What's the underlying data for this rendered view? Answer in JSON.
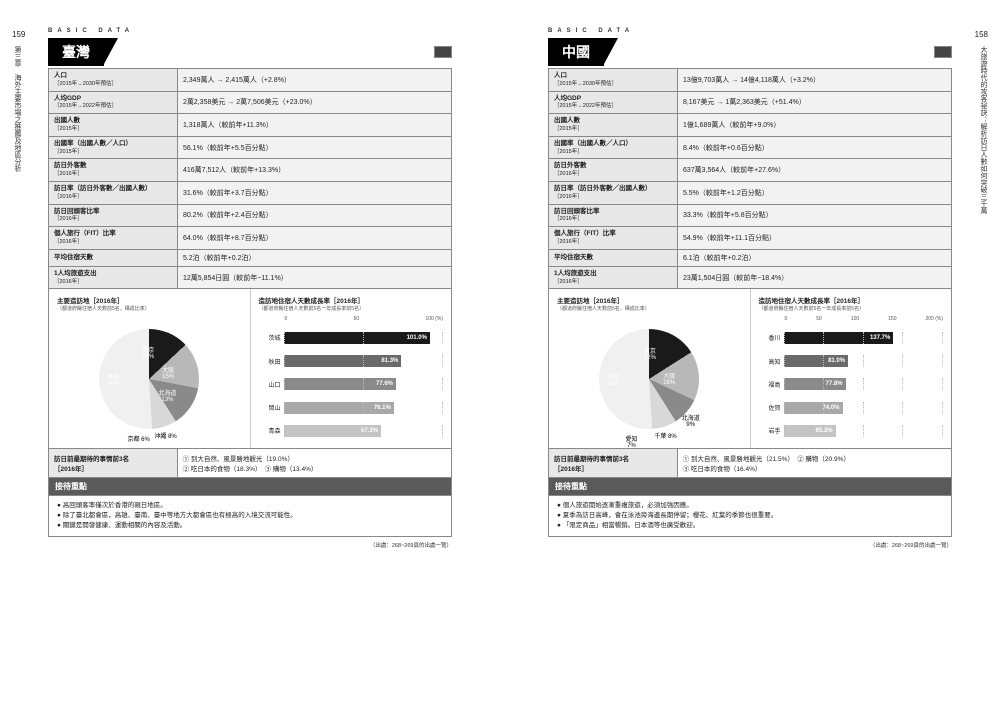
{
  "header": "BASIC DATA",
  "source": "（出處：268~269頁的出處一覽）",
  "left": {
    "pgnum": "159",
    "sidenote": "第三章　海外主要市場之推薦及地區分析",
    "title": "臺灣",
    "rows": [
      {
        "k": "人口",
        "s": "［2015年→2030年預估］",
        "v": "2,349萬人 → 2,415萬人（+2.8%）"
      },
      {
        "k": "人均GDP",
        "s": "［2015年→2022年預估］",
        "v": "2萬2,358美元 → 2萬7,506美元（+23.0%）"
      },
      {
        "k": "出國人數",
        "s": "［2015年］",
        "v": "1,318萬人（較前年+11.3%）"
      },
      {
        "k": "出國率（出國人數／人口）",
        "s": "［2015年］",
        "v": "56.1%（較前年+5.5百分點）"
      },
      {
        "k": "訪日外客數",
        "s": "［2016年］",
        "v": "416萬7,512人（較前年+13.3%）"
      },
      {
        "k": "訪日率（訪日外客數／出國人數）",
        "s": "［2016年］",
        "v": "31.6%（較前年+3.7百分點）"
      },
      {
        "k": "訪日回頭客比率",
        "s": "［2016年］",
        "v": "80.2%（較前年+2.4百分點）"
      },
      {
        "k": "個人旅行（FIT）比率",
        "s": "［2016年］",
        "v": "64.0%（較前年+8.7百分點）"
      },
      {
        "k": "平均住宿天數",
        "s": "",
        "v": "5.2泊（較前年+0.2泊）"
      },
      {
        "k": "1人均旅遊支出",
        "s": "［2016年］",
        "v": "12萬5,854日圓（較前年−11.1%）"
      }
    ],
    "pie": {
      "title": "主要造訪地［2016年］",
      "sub": "（都道府縣住宿人天數前5名，構成比率）",
      "slices": [
        {
          "label": "其他",
          "pct": 40,
          "color": "#4a4a4a",
          "text": "其他\n40%"
        },
        {
          "label": "東京",
          "pct": 18,
          "color": "#1a1a1a",
          "text": "東京\n18%"
        },
        {
          "label": "大阪",
          "pct": 15,
          "color": "#b8b8b8",
          "text": "大阪\n15%"
        },
        {
          "label": "北海道",
          "pct": 13,
          "color": "#8a8a8a",
          "text": "北海道\n13%"
        },
        {
          "label": "沖繩",
          "pct": 8,
          "color": "#d8d8d8",
          "text": "沖繩 8%"
        },
        {
          "label": "京都",
          "pct": 6,
          "color": "#f0f0f0",
          "text": "京都 6%"
        }
      ]
    },
    "bars": {
      "title": "造訪地住宿人天數成長率［2016年］",
      "sub": "（都道府縣住宿人天數前5名一年成長率前5名）",
      "axis": [
        "0",
        "50",
        "100 (%)"
      ],
      "max": 110,
      "items": [
        {
          "label": "茨城",
          "val": 101.0,
          "color": "#1a1a1a"
        },
        {
          "label": "秋田",
          "val": 81.3,
          "color": "#6a6a6a"
        },
        {
          "label": "山口",
          "val": 77.6,
          "color": "#8a8a8a"
        },
        {
          "label": "岡山",
          "val": 76.1,
          "color": "#a8a8a8"
        },
        {
          "label": "青森",
          "val": 67.3,
          "color": "#c4c4c4"
        }
      ]
    },
    "expect": {
      "k": "訪日前最期待的事情前3名",
      "s": "［2016年］",
      "v": "① 到大自然、風景勝地觀光（19.0%）\n② 吃日本的食物（18.3%）　③ 購物（13.4%）"
    },
    "band": "接待重點",
    "bullets": [
      "高回頭客率僅次於香港的親日地區。",
      "除了臺北都會區，高雄、臺南、臺中等地方大都會區也有極高的入境交流可能性。",
      "關鍵是開發健康、運動相關的內容及活動。"
    ]
  },
  "right": {
    "pgnum": "158",
    "sidenote": "大旅遊時代的攻客祕訣：解析訪日人數如何突破三千萬",
    "title": "中國",
    "rows": [
      {
        "k": "人口",
        "s": "［2015年→2030年預估］",
        "v": "13億9,703萬人 → 14億4,118萬人（+3.2%）"
      },
      {
        "k": "人均GDP",
        "s": "［2015年→2022年預估］",
        "v": "8,167美元 → 1萬2,363美元（+51.4%）"
      },
      {
        "k": "出國人數",
        "s": "［2015年］",
        "v": "1億1,689萬人（較前年+9.0%）"
      },
      {
        "k": "出國率（出國人數／人口）",
        "s": "［2015年］",
        "v": "8.4%（較前年+0.6百分點）"
      },
      {
        "k": "訪日外客數",
        "s": "［2016年］",
        "v": "637萬3,564人（較前年+27.6%）"
      },
      {
        "k": "訪日率（訪日外客數／出國人數）",
        "s": "［2016年］",
        "v": "5.5%（較前年+1.2百分點）"
      },
      {
        "k": "訪日回頭客比率",
        "s": "［2016年］",
        "v": "33.3%（較前年+5.8百分點）"
      },
      {
        "k": "個人旅行（FIT）比率",
        "s": "［2016年］",
        "v": "54.9%（較前年+11.1百分點）"
      },
      {
        "k": "平均住宿天數",
        "s": "",
        "v": "6.1泊（較前年+0.2泊）"
      },
      {
        "k": "1人均旅遊支出",
        "s": "［2016年］",
        "v": "23萬1,504日圓（較前年−18.4%）"
      }
    ],
    "pie": {
      "title": "主要造訪地［2016年］",
      "sub": "（都道府縣住宿人天數前5名，構成比率）",
      "slices": [
        {
          "label": "其他",
          "pct": 38,
          "color": "#4a4a4a",
          "text": "其他\n38%"
        },
        {
          "label": "東京",
          "pct": 22,
          "color": "#1a1a1a",
          "text": "東京\n22%"
        },
        {
          "label": "大阪",
          "pct": 16,
          "color": "#b8b8b8",
          "text": "大阪\n16%"
        },
        {
          "label": "北海道",
          "pct": 9,
          "color": "#8a8a8a",
          "text": "北海道\n9%"
        },
        {
          "label": "千葉",
          "pct": 8,
          "color": "#d8d8d8",
          "text": "千葉 8%"
        },
        {
          "label": "愛知",
          "pct": 7,
          "color": "#f0f0f0",
          "text": "愛知\n7%"
        }
      ]
    },
    "bars": {
      "title": "造訪地住宿人天數成長率［2016年］",
      "sub": "（都道府縣住宿人天數前5名一年成長率前5名）",
      "axis": [
        "0",
        "50",
        "100",
        "150",
        "200 (%)"
      ],
      "max": 200,
      "items": [
        {
          "label": "香川",
          "val": 137.7,
          "color": "#1a1a1a"
        },
        {
          "label": "高知",
          "val": 81.0,
          "color": "#6a6a6a"
        },
        {
          "label": "福島",
          "val": 77.8,
          "color": "#8a8a8a"
        },
        {
          "label": "佐賀",
          "val": 74.0,
          "color": "#a8a8a8"
        },
        {
          "label": "岩手",
          "val": 65.3,
          "color": "#c4c4c4"
        }
      ]
    },
    "expect": {
      "k": "訪日前最期待的事情前3名",
      "s": "［2016年］",
      "v": "① 到大自然、風景勝地觀光（21.5%）　② 購物（20.9%）\n③ 吃日本的食物（16.4%）"
    },
    "band": "接待重點",
    "bullets": [
      "個人旅遊開始逐漸重複旅遊，必須加強因應。",
      "夏季為訪日高峰，會在泳池旁海邊長期停留；櫻花、紅葉的季節也很重要。",
      "「限定商品」相當暢銷。日本酒等也廣受歡迎。"
    ]
  }
}
